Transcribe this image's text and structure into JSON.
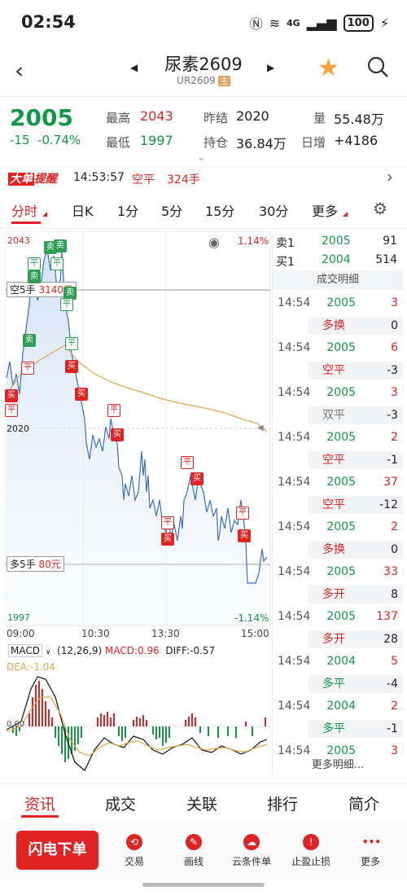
{
  "status_bar": {
    "time": "02:54",
    "battery": "100",
    "network": "4G"
  },
  "header": {
    "name": "尿素2609",
    "code": "UR2609",
    "badge": "主"
  },
  "quote": {
    "price": "2005",
    "change": "-15",
    "change_pct": "-0.74%",
    "high_label": "最高",
    "high": "2043",
    "low_label": "最低",
    "low": "1997",
    "prev_settle_label": "昨结",
    "prev_settle": "2020",
    "open_interest_label": "持仓",
    "open_interest": "36.84万",
    "volume_label": "量",
    "volume": "55.48万",
    "daily_change_label": "日增",
    "daily_change": "+4186"
  },
  "alert": {
    "tag_1": "大单",
    "tag_2": "提醒",
    "time": "14:53:57",
    "type": "空平",
    "lots": "324手"
  },
  "tabs": [
    "分时",
    "日K",
    "1分",
    "5分",
    "15分",
    "30分",
    "更多"
  ],
  "chart": {
    "y_max": "2043",
    "y_max_pct": "1.14%",
    "y_mid": "2020",
    "y_min": "1997",
    "y_min_pct": "-1.14%",
    "x_labels": [
      "09:00",
      "10:30",
      "13:30",
      "15:00"
    ],
    "short_label": "空5手",
    "short_value": "3140元",
    "long_label": "多5手",
    "long_value": "80元",
    "macd_name": "MACD",
    "macd_params": "(12,26,9)",
    "macd_value": "MACD:0.96",
    "diff_value": "DIFF:-0.57",
    "dea_value": "DEA:-1.04",
    "macd_zero": "0.00",
    "colors": {
      "price_line": "#3a6fc4",
      "avg_line": "#e5a64b",
      "up": "#e02424",
      "down": "#119944"
    }
  },
  "order_book": {
    "ask_label": "卖1",
    "ask_price": "2005",
    "ask_vol": "91",
    "bid_label": "买1",
    "bid_price": "2004",
    "bid_vol": "514"
  },
  "trades_header": "成交明细",
  "trades": [
    {
      "time": "14:54",
      "price": "2005",
      "vol": "3",
      "kind": "多换",
      "delta": "0",
      "pc": "green",
      "kc": "red"
    },
    {
      "time": "14:54",
      "price": "2005",
      "vol": "6",
      "kind": "空平",
      "delta": "-3",
      "pc": "green",
      "kc": "red"
    },
    {
      "time": "14:54",
      "price": "2005",
      "vol": "3",
      "kind": "双平",
      "delta": "-3",
      "pc": "green",
      "kc": "gray"
    },
    {
      "time": "14:54",
      "price": "2005",
      "vol": "2",
      "kind": "空平",
      "delta": "-1",
      "pc": "green",
      "kc": "red"
    },
    {
      "time": "14:54",
      "price": "2005",
      "vol": "37",
      "kind": "空平",
      "delta": "-12",
      "pc": "green",
      "kc": "red"
    },
    {
      "time": "14:54",
      "price": "2005",
      "vol": "2",
      "kind": "多换",
      "delta": "0",
      "pc": "green",
      "kc": "red"
    },
    {
      "time": "14:54",
      "price": "2005",
      "vol": "33",
      "kind": "多开",
      "delta": "8",
      "pc": "green",
      "kc": "red"
    },
    {
      "time": "14:54",
      "price": "2005",
      "vol": "137",
      "kind": "多开",
      "delta": "28",
      "pc": "green",
      "kc": "red"
    },
    {
      "time": "14:54",
      "price": "2004",
      "vol": "5",
      "kind": "多平",
      "delta": "-4",
      "pc": "green",
      "kc": "green"
    },
    {
      "time": "14:54",
      "price": "2004",
      "vol": "2",
      "kind": "多平",
      "delta": "-1",
      "pc": "green",
      "kc": "green"
    },
    {
      "time": "14:54",
      "price": "2005",
      "vol": "3",
      "kind": "",
      "delta": "",
      "pc": "green",
      "kc": "red"
    }
  ],
  "more_details": "更多明细...",
  "bottom_tabs": [
    "资讯",
    "成交",
    "关联",
    "排行",
    "简介"
  ],
  "actions": {
    "flash": "闪电下单",
    "items": [
      "交易",
      "画线",
      "云条件单",
      "止盈止损",
      "更多"
    ]
  },
  "signals": {
    "sell": "卖",
    "buy": "买",
    "flat": "平"
  }
}
